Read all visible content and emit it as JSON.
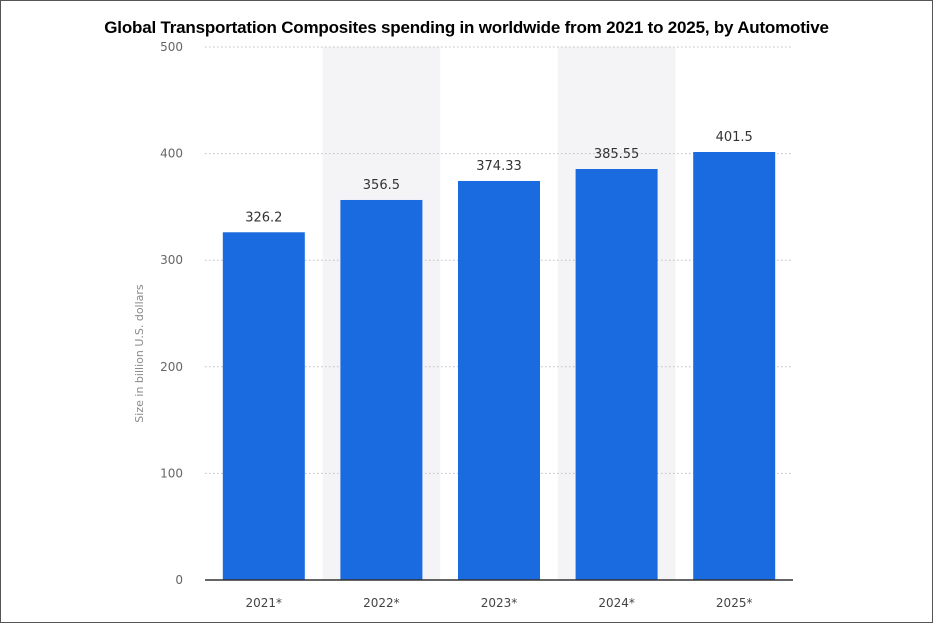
{
  "chart_data": {
    "type": "bar",
    "title": "Global Transportation Composites spending in worldwide from 2021 to 2025, by Automotive",
    "xlabel": "",
    "ylabel": "Size in billion U.S. dollars",
    "categories": [
      "2021*",
      "2022*",
      "2023*",
      "2024*",
      "2025*"
    ],
    "values": [
      326.2,
      356.5,
      374.33,
      385.55,
      401.5
    ],
    "value_labels": [
      "326.2",
      "356.5",
      "374.33",
      "385.55",
      "401.5"
    ],
    "ylim": [
      0,
      500
    ],
    "yticks": [
      0,
      100,
      200,
      300,
      400,
      500
    ],
    "grid": true,
    "bar_color": "#1a6ae0",
    "band_color": "#f4f4f6"
  }
}
